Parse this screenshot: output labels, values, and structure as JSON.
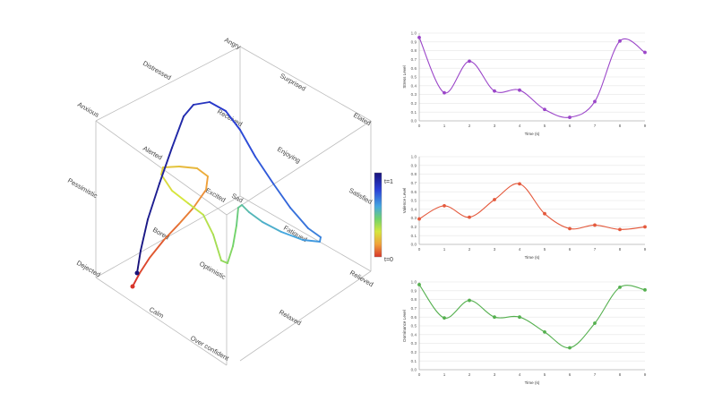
{
  "emotion_labels": {
    "angry": "Angry",
    "surprised": "Surprised",
    "elated": "Elated",
    "satisfied": "Satisfied",
    "relieved": "Relieved",
    "relaxed": "Relaxed",
    "overconfident": "Over confident",
    "calm": "Calm",
    "dejected": "Dejected",
    "pessimistic": "Pessimistic",
    "anxious": "Anxious",
    "distressed": "Distressed",
    "alerted": "Alerted",
    "excited": "Excited",
    "bored": "Bored",
    "optimistic": "Optimistic",
    "received": "Received",
    "enjoying": "Enjoying",
    "fatigued": "Fatigued",
    "sad": "Sad"
  },
  "colorbar": {
    "top_label": "t=1",
    "bottom_label": "t=0"
  },
  "chart_data": [
    {
      "type": "line",
      "xlabel": "Time (s)",
      "ylabel": "Stress Level",
      "color": "#9b46c9",
      "x": [
        0,
        1,
        2,
        3,
        4,
        5,
        6,
        7,
        8,
        9
      ],
      "values": [
        0.95,
        0.32,
        0.68,
        0.34,
        0.35,
        0.13,
        0.04,
        0.22,
        0.91,
        0.78
      ],
      "xlim": [
        0,
        9
      ],
      "ylim": [
        0,
        1.0
      ],
      "xticks": [
        "0",
        "1",
        "2",
        "3",
        "4",
        "5",
        "6",
        "7",
        "8",
        "9"
      ],
      "yticks": [
        "0.0",
        "0.1",
        "0.2",
        "0.3",
        "0.4",
        "0.5",
        "0.6",
        "0.7",
        "0.8",
        "0.9",
        "1.0"
      ],
      "grid": true
    },
    {
      "type": "line",
      "xlabel": "Time (s)",
      "ylabel": "Valence Level",
      "color": "#e4593c",
      "x": [
        0,
        1,
        2,
        3,
        4,
        5,
        6,
        7,
        8,
        9
      ],
      "values": [
        0.29,
        0.44,
        0.31,
        0.51,
        0.69,
        0.35,
        0.18,
        0.22,
        0.17,
        0.2
      ],
      "xlim": [
        0,
        9
      ],
      "ylim": [
        0,
        1.0
      ],
      "xticks": [
        "0",
        "1",
        "2",
        "3",
        "4",
        "5",
        "6",
        "7",
        "8",
        "9"
      ],
      "yticks": [
        "0.0",
        "0.1",
        "0.2",
        "0.3",
        "0.4",
        "0.5",
        "0.6",
        "0.7",
        "0.8",
        "0.9",
        "1.0"
      ],
      "grid": true
    },
    {
      "type": "line",
      "xlabel": "Time (s)",
      "ylabel": "Dominance Level",
      "color": "#55b04f",
      "x": [
        0,
        1,
        2,
        3,
        4,
        5,
        6,
        7,
        8,
        9
      ],
      "values": [
        0.97,
        0.59,
        0.79,
        0.6,
        0.6,
        0.43,
        0.25,
        0.53,
        0.94,
        0.91
      ],
      "xlim": [
        0,
        9
      ],
      "ylim": [
        0,
        1.0
      ],
      "xticks": [
        "0",
        "1",
        "2",
        "3",
        "4",
        "5",
        "6",
        "7",
        "8",
        "9"
      ],
      "yticks": [
        "0.0",
        "0.1",
        "0.2",
        "0.3",
        "0.4",
        "0.5",
        "0.6",
        "0.7",
        "0.8",
        "0.9",
        "1.0"
      ],
      "grid": true
    }
  ]
}
